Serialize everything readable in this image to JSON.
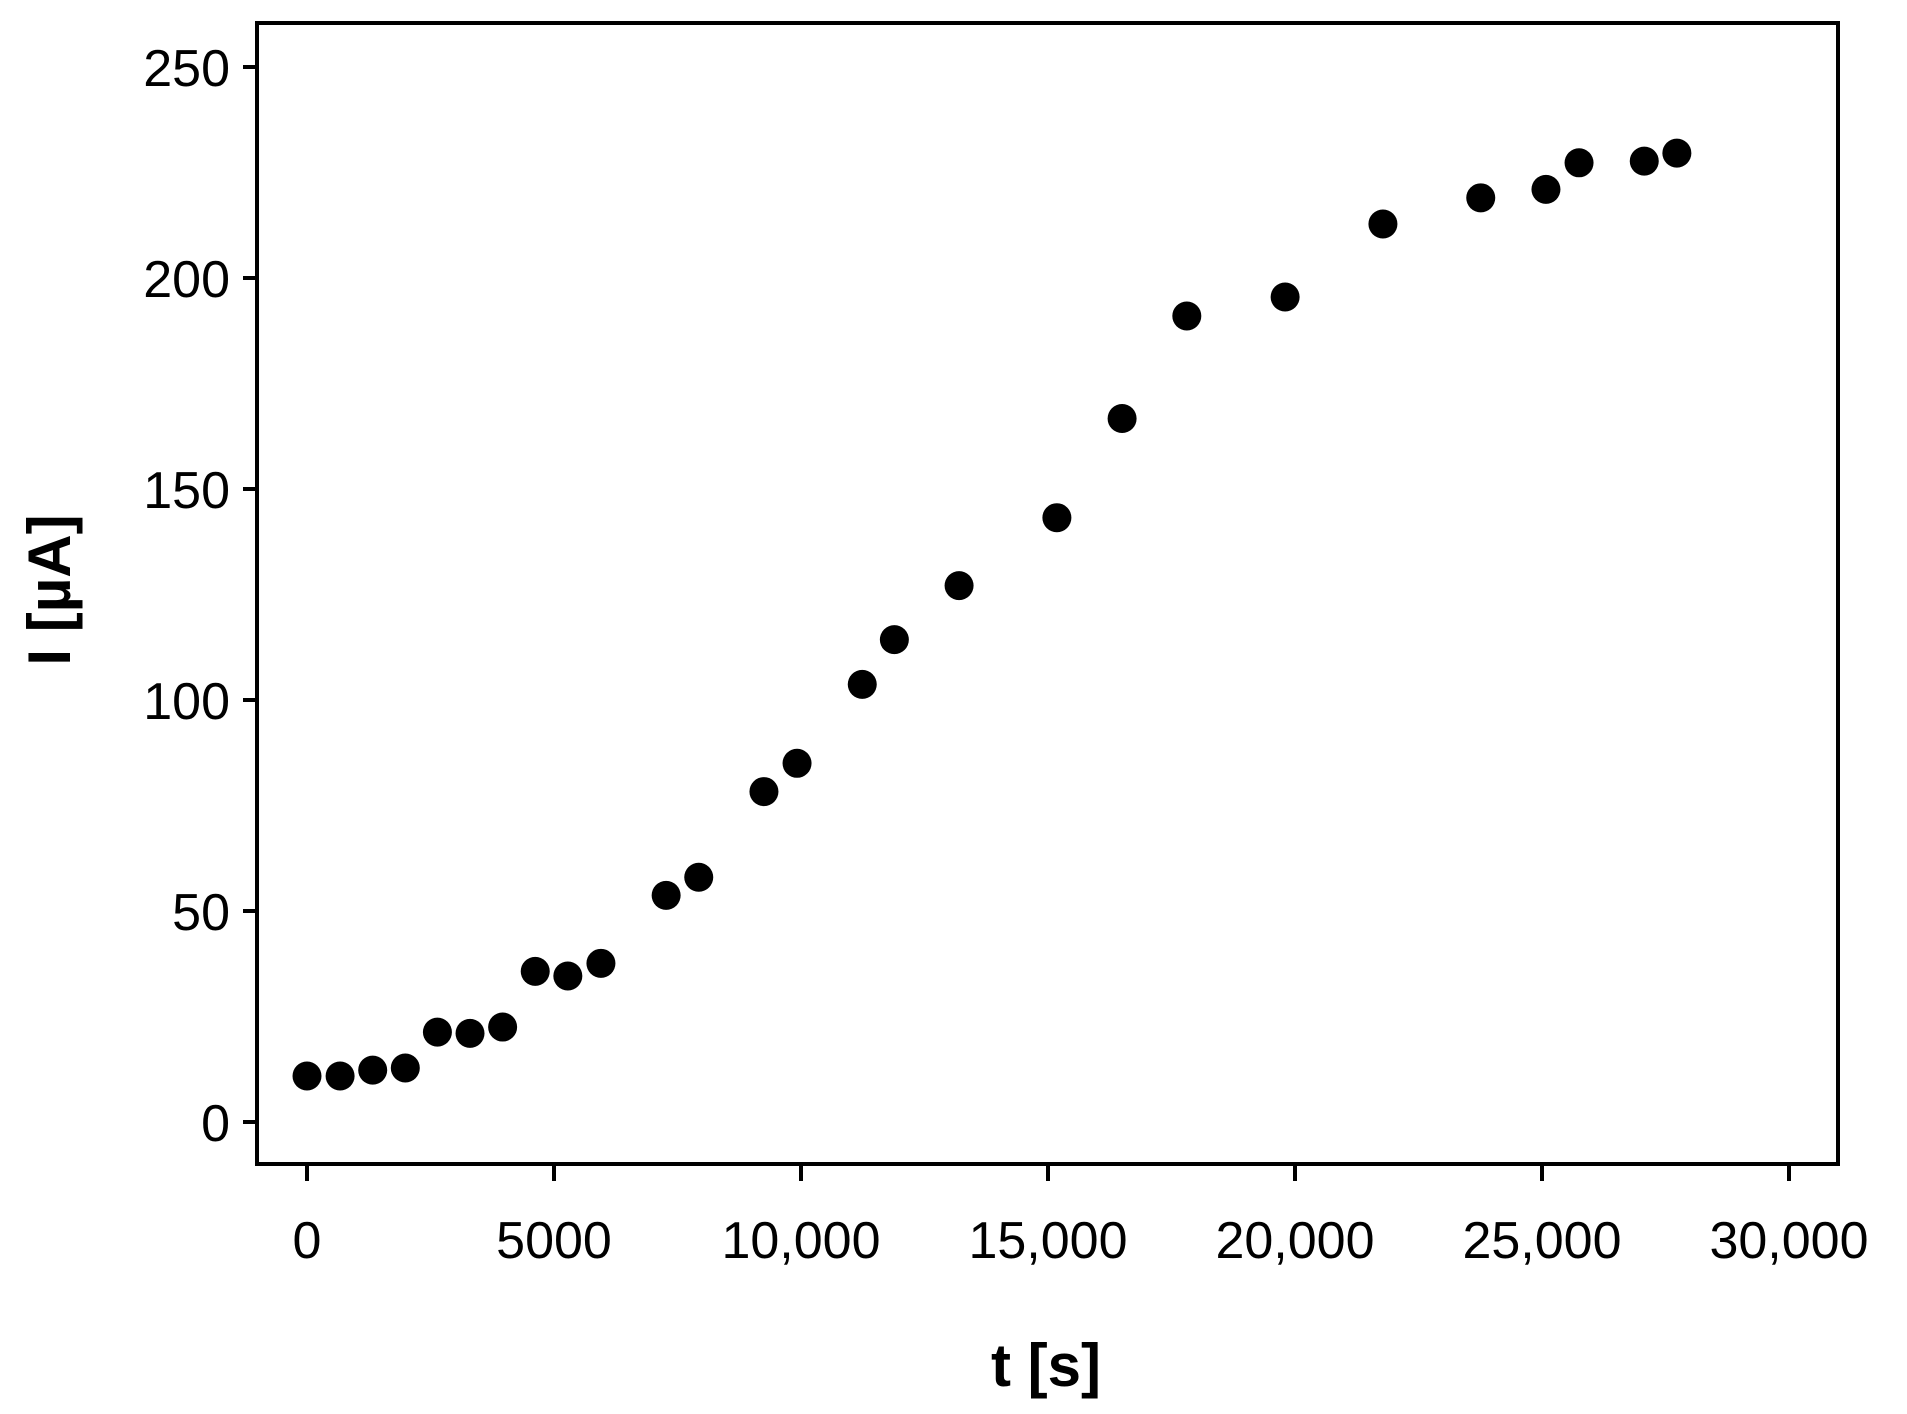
{
  "chart_data": {
    "type": "scatter",
    "title": "",
    "xlabel": "t [s]",
    "ylabel": "I [µA]",
    "xlim": [
      -1200,
      31000
    ],
    "ylim": [
      -10,
      260
    ],
    "xticks": [
      0,
      5000,
      10000,
      15000,
      20000,
      25000,
      30000
    ],
    "xtick_labels": [
      "0",
      "5000",
      "10,000",
      "15,000",
      "20,000",
      "25,000",
      "30,000"
    ],
    "yticks": [
      0,
      50,
      100,
      150,
      200,
      250
    ],
    "ytick_labels": [
      "0",
      "50",
      "100",
      "150",
      "200",
      "250"
    ],
    "grid": false,
    "legend": null,
    "marker_color": "#000000",
    "series": [
      {
        "name": "I",
        "x": [
          0,
          670,
          1330,
          1990,
          2640,
          3300,
          3960,
          4620,
          5280,
          5950,
          7270,
          7930,
          9250,
          9920,
          11240,
          11890,
          13200,
          15180,
          16500,
          17810,
          19800,
          21780,
          23760,
          25080,
          25750,
          27070,
          27730
        ],
        "y": [
          10.9,
          10.9,
          12.3,
          12.8,
          21.3,
          21.0,
          22.5,
          35.7,
          34.6,
          37.6,
          53.7,
          58.0,
          78.3,
          85.0,
          103.7,
          114.3,
          127.1,
          143.2,
          166.7,
          191.0,
          195.5,
          212.8,
          219.0,
          221.0,
          227.3,
          227.7,
          229.6
        ]
      }
    ]
  }
}
